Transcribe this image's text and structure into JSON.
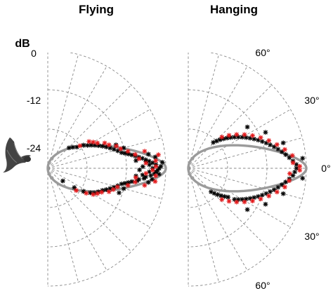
{
  "chart_data": {
    "type": "scatter",
    "subtype": "polar-half",
    "radial_unit": "dB",
    "radial_ticks": [
      "0",
      "-12",
      "-24"
    ],
    "angle_ticks_deg": [
      60,
      30,
      0,
      -30,
      -60
    ],
    "angle_tick_labels": {
      "60": "60°",
      "30": "30°",
      "0": "0°",
      "-30": "30°",
      "-60": "60°"
    },
    "grid": true,
    "colors": {
      "black_points": "#000000",
      "red_points": "#e41a1c",
      "model": "#9b9b9b",
      "grid": "#8a8a8a"
    },
    "panels": [
      {
        "title": "Flying",
        "icon": "bat-icon",
        "model": "directional-lobe",
        "points": {
          "black": [
            [
              0,
              -2
            ],
            [
              1,
              -1.5
            ],
            [
              -1,
              -2.5
            ],
            [
              2,
              -3
            ],
            [
              -2,
              -3
            ],
            [
              3,
              -4
            ],
            [
              -3,
              -3.5
            ],
            [
              4,
              -5
            ],
            [
              -4,
              -4.5
            ],
            [
              5,
              -6
            ],
            [
              -5,
              -6
            ],
            [
              6,
              -7
            ],
            [
              -6,
              -6.5
            ],
            [
              7,
              -8
            ],
            [
              -7,
              -8
            ],
            [
              8,
              -9
            ],
            [
              -8,
              -8.5
            ],
            [
              9,
              -10
            ],
            [
              -9,
              -10
            ],
            [
              10,
              -11
            ],
            [
              -10,
              -11
            ],
            [
              11,
              -12
            ],
            [
              -11,
              -12
            ],
            [
              12,
              -13
            ],
            [
              -12,
              -13
            ],
            [
              0,
              -4
            ],
            [
              2,
              -5
            ],
            [
              -2,
              -5
            ],
            [
              4,
              -6
            ],
            [
              -4,
              -7
            ],
            [
              14,
              -14
            ],
            [
              -14,
              -14
            ],
            [
              16,
              -15
            ],
            [
              -16,
              -15
            ],
            [
              18,
              -16
            ],
            [
              -18,
              -16
            ],
            [
              20,
              -17
            ],
            [
              -20,
              -17
            ],
            [
              22,
              -18
            ],
            [
              -22,
              -18
            ],
            [
              24,
              -19
            ],
            [
              26,
              -20
            ],
            [
              28,
              -21
            ],
            [
              30,
              -22
            ],
            [
              33,
              -23
            ],
            [
              36,
              -25
            ],
            [
              -25,
              -19
            ],
            [
              -28,
              -20
            ],
            [
              -30,
              -21
            ],
            [
              -33,
              -23
            ],
            [
              -36,
              -26
            ],
            [
              -40,
              -30
            ],
            [
              40,
              -26
            ],
            [
              44,
              -27
            ],
            [
              6,
              -3
            ],
            [
              -6,
              -4
            ],
            [
              8,
              -5
            ],
            [
              -8,
              -5
            ],
            [
              3,
              -1
            ],
            [
              -3,
              -2
            ],
            [
              1,
              -7
            ],
            [
              -1,
              -8
            ],
            [
              5,
              -9
            ],
            [
              -5,
              -9
            ],
            [
              15,
              -12
            ],
            [
              -15,
              -12
            ],
            [
              19,
              -14
            ],
            [
              -19,
              -13
            ]
          ],
          "red": [
            [
              1,
              -3
            ],
            [
              -1,
              -4
            ],
            [
              3,
              -6
            ],
            [
              -3,
              -6
            ],
            [
              6,
              -8
            ],
            [
              -6,
              -9
            ],
            [
              9,
              -9
            ],
            [
              -9,
              -9
            ],
            [
              12,
              -11
            ],
            [
              -12,
              -11
            ],
            [
              15,
              -13
            ],
            [
              -15,
              -14
            ],
            [
              18,
              -14
            ],
            [
              -18,
              -15
            ],
            [
              21,
              -16
            ],
            [
              -21,
              -16
            ],
            [
              24,
              -17
            ],
            [
              -24,
              -18
            ],
            [
              27,
              -19
            ],
            [
              -27,
              -19
            ],
            [
              30,
              -20
            ],
            [
              -30,
              -20
            ],
            [
              33,
              -21
            ],
            [
              -33,
              -22
            ],
            [
              35,
              -24
            ],
            [
              -38,
              -25
            ],
            [
              4,
              -3
            ],
            [
              -4,
              -3
            ],
            [
              7,
              -2
            ],
            [
              -7,
              -3
            ],
            [
              10,
              -6
            ],
            [
              -10,
              -6
            ]
          ]
        }
      },
      {
        "title": "Hanging",
        "model": "directional-lobe",
        "points": {
          "black": [
            [
              0,
              -3
            ],
            [
              2,
              -3
            ],
            [
              -2,
              -3.5
            ],
            [
              4,
              -4
            ],
            [
              -4,
              -4
            ],
            [
              6,
              -5
            ],
            [
              -6,
              -5
            ],
            [
              8,
              -6
            ],
            [
              -8,
              -6
            ],
            [
              10,
              -7
            ],
            [
              -10,
              -7
            ],
            [
              12,
              -8
            ],
            [
              -12,
              -8
            ],
            [
              14,
              -9
            ],
            [
              -14,
              -9
            ],
            [
              16,
              -10
            ],
            [
              -16,
              -10
            ],
            [
              18,
              -11
            ],
            [
              -18,
              -11
            ],
            [
              20,
              -12
            ],
            [
              -20,
              -12
            ],
            [
              22,
              -13
            ],
            [
              -22,
              -13
            ],
            [
              24,
              -14
            ],
            [
              -24,
              -14
            ],
            [
              26,
              -15
            ],
            [
              -26,
              -15
            ],
            [
              28,
              -16
            ],
            [
              -28,
              -16
            ],
            [
              30,
              -17
            ],
            [
              -30,
              -17
            ],
            [
              32,
              -18
            ],
            [
              -32,
              -18
            ],
            [
              34,
              -19
            ],
            [
              -34,
              -19
            ],
            [
              36,
              -20
            ],
            [
              -36,
              -21
            ],
            [
              38,
              -21
            ],
            [
              -38,
              -22
            ],
            [
              40,
              -22
            ],
            [
              -40,
              -23
            ],
            [
              42,
              -23
            ],
            [
              -42,
              -24
            ],
            [
              44,
              -24
            ],
            [
              -44,
              -25
            ],
            [
              46,
              -25
            ],
            [
              -46,
              -26
            ],
            [
              5,
              -1
            ],
            [
              -5,
              -1
            ],
            [
              15,
              -6
            ],
            [
              -15,
              -6
            ],
            [
              25,
              -10
            ],
            [
              -25,
              -10
            ],
            [
              35,
              -14
            ],
            [
              -35,
              -14
            ]
          ],
          "red": [
            [
              1,
              -2
            ],
            [
              -1,
              -2
            ],
            [
              3,
              -4
            ],
            [
              -3,
              -5
            ],
            [
              7,
              -4
            ],
            [
              -7,
              -5
            ],
            [
              11,
              -6
            ],
            [
              -11,
              -6
            ],
            [
              15,
              -8
            ],
            [
              -15,
              -8
            ],
            [
              19,
              -10
            ],
            [
              -19,
              -10
            ],
            [
              23,
              -12
            ],
            [
              -23,
              -12
            ],
            [
              27,
              -14
            ],
            [
              -27,
              -14
            ],
            [
              31,
              -16
            ],
            [
              -31,
              -16
            ],
            [
              35,
              -18
            ],
            [
              -35,
              -18
            ],
            [
              39,
              -20
            ],
            [
              -39,
              -20
            ],
            [
              43,
              -22
            ],
            [
              -43,
              -22
            ]
          ]
        }
      }
    ]
  }
}
